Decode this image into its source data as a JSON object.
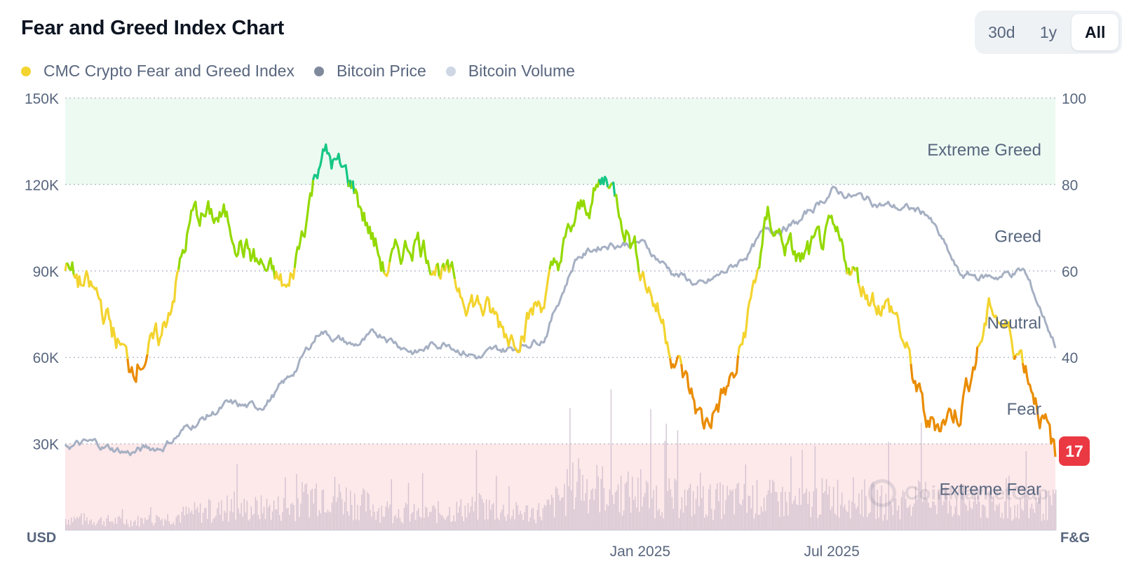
{
  "header": {
    "title": "Fear and Greed Index Chart",
    "ranges": [
      "30d",
      "1y",
      "All"
    ],
    "active_range": "All"
  },
  "legend": [
    {
      "label": "CMC Crypto Fear and Greed Index",
      "color": "#f3d42f"
    },
    {
      "label": "Bitcoin Price",
      "color": "#808a9d"
    },
    {
      "label": "Bitcoin Volume",
      "color": "#cfd6e4"
    }
  ],
  "current_value": "17",
  "watermark": "CoinMarketCap",
  "colors": {
    "extreme_greed": "#16c784",
    "greed": "#93d900",
    "neutral": "#f3d42f",
    "fear": "#ea8c00",
    "extreme_fear": "#ea3943",
    "price": "#a6b0c3",
    "volume": "#cbbccb",
    "greed_band": "#ecfaf2",
    "fear_band": "#fde8ea"
  },
  "chart_data": {
    "type": "line",
    "title": "Fear and Greed Index Chart",
    "left_axis": {
      "unit": "USD",
      "ticks": [
        "150K",
        "120K",
        "90K",
        "60K",
        "30K"
      ],
      "range": [
        0,
        150000
      ]
    },
    "right_axis": {
      "unit": "F&G",
      "ticks": [
        "100",
        "80",
        "60",
        "40"
      ],
      "range": [
        0,
        100
      ]
    },
    "x_ticks": [
      "Jan 2025",
      "Jul 2025"
    ],
    "x_tick_positions": [
      "2025-01",
      "2025-07"
    ],
    "x_range": [
      "2023-07",
      "2026-02"
    ],
    "zones": [
      {
        "label": "Extreme Greed",
        "from": 80,
        "to": 100
      },
      {
        "label": "Greed",
        "from": 60,
        "to": 80
      },
      {
        "label": "Neutral",
        "from": 40,
        "to": 60
      },
      {
        "label": "Fear",
        "from": 20,
        "to": 40
      },
      {
        "label": "Extreme Fear",
        "from": 0,
        "to": 20
      }
    ],
    "series": [
      {
        "name": "CMC Crypto Fear and Greed Index",
        "axis": "right",
        "x": [
          "2023-07",
          "2023-08",
          "2023-09",
          "2023-10",
          "2023-11",
          "2023-12",
          "2024-01",
          "2024-02",
          "2024-03",
          "2024-04",
          "2024-05",
          "2024-06",
          "2024-07",
          "2024-08",
          "2024-09",
          "2024-10",
          "2024-11",
          "2024-12",
          "2025-01",
          "2025-02",
          "2025-03",
          "2025-04",
          "2025-05",
          "2025-06",
          "2025-07",
          "2025-08",
          "2025-09",
          "2025-10",
          "2025-11",
          "2025-12",
          "2026-01",
          "2026-02"
        ],
        "values": [
          60,
          54,
          38,
          44,
          73,
          72,
          62,
          55,
          88,
          80,
          60,
          68,
          58,
          52,
          45,
          54,
          72,
          82,
          62,
          42,
          24,
          36,
          72,
          62,
          68,
          56,
          50,
          24,
          28,
          52,
          40,
          17
        ]
      },
      {
        "name": "Bitcoin Price",
        "axis": "left",
        "x": [
          "2023-07",
          "2023-08",
          "2023-09",
          "2023-10",
          "2023-11",
          "2023-12",
          "2024-01",
          "2024-02",
          "2024-03",
          "2024-04",
          "2024-05",
          "2024-06",
          "2024-07",
          "2024-08",
          "2024-09",
          "2024-10",
          "2024-11",
          "2024-12",
          "2025-01",
          "2025-02",
          "2025-03",
          "2025-04",
          "2025-05",
          "2025-06",
          "2025-07",
          "2025-08",
          "2025-09",
          "2025-10",
          "2025-11",
          "2025-12",
          "2026-01",
          "2026-02"
        ],
        "values": [
          30000,
          29500,
          27000,
          29000,
          37000,
          43000,
          42000,
          52000,
          70000,
          64000,
          68000,
          62000,
          66000,
          60000,
          63000,
          68000,
          95000,
          100000,
          100000,
          90000,
          84000,
          92000,
          104000,
          107000,
          118000,
          115000,
          112000,
          110000,
          88000,
          88000,
          90000,
          65000
        ]
      },
      {
        "name": "Bitcoin Volume",
        "axis": "left",
        "x": [
          "2023-07",
          "2023-08",
          "2023-09",
          "2023-10",
          "2023-11",
          "2023-12",
          "2024-01",
          "2024-02",
          "2024-03",
          "2024-04",
          "2024-05",
          "2024-06",
          "2024-07",
          "2024-08",
          "2024-09",
          "2024-10",
          "2024-11",
          "2024-12",
          "2025-01",
          "2025-02",
          "2025-03",
          "2025-04",
          "2025-05",
          "2025-06",
          "2025-07",
          "2025-08",
          "2025-09",
          "2025-10",
          "2025-11",
          "2025-12",
          "2026-01",
          "2026-02"
        ],
        "values": [
          4000,
          3500,
          3000,
          4000,
          6000,
          7000,
          7500,
          8000,
          14000,
          10000,
          7000,
          5500,
          6500,
          8000,
          6000,
          6500,
          16000,
          14000,
          12000,
          11000,
          10000,
          10500,
          11000,
          9000,
          12000,
          11000,
          8500,
          11500,
          10000,
          8000,
          7500,
          9000
        ]
      }
    ]
  }
}
